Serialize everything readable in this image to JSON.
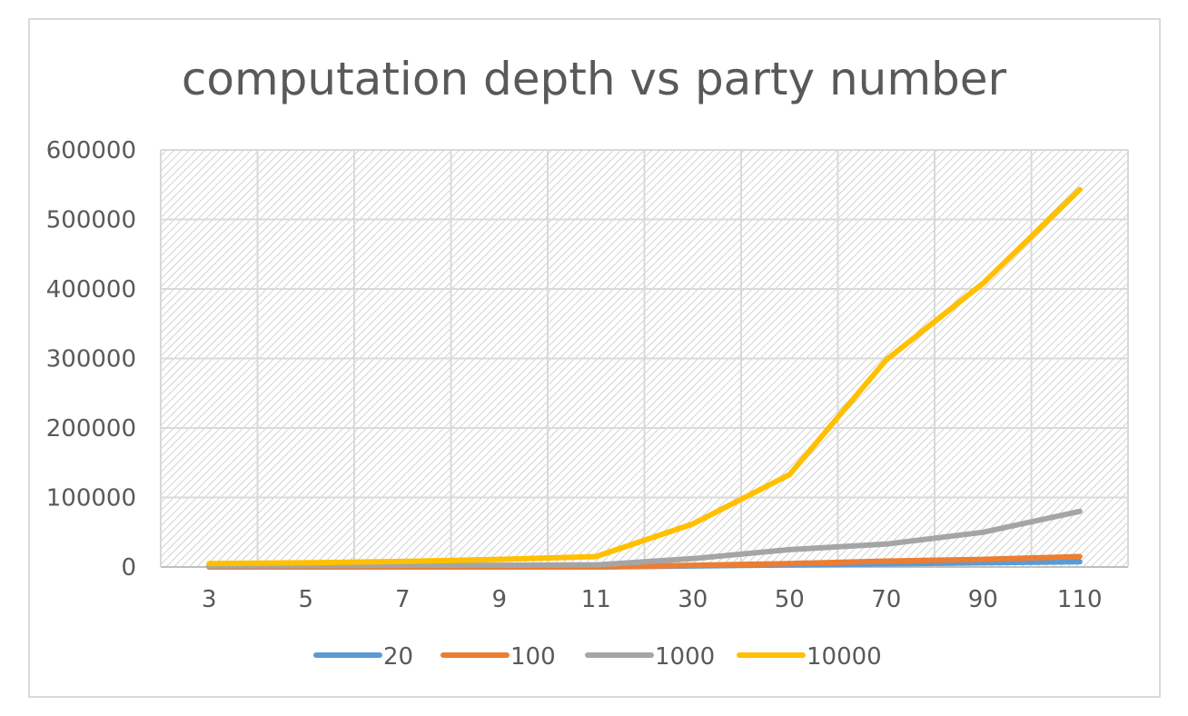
{
  "chart_data": {
    "type": "line",
    "title": "computation depth vs party number",
    "xlabel": "",
    "ylabel": "",
    "categories": [
      "3",
      "5",
      "7",
      "9",
      "11",
      "30",
      "50",
      "70",
      "90",
      "110"
    ],
    "ylim": [
      0,
      600000
    ],
    "yticks": [
      0,
      100000,
      200000,
      300000,
      400000,
      500000,
      600000
    ],
    "grid": true,
    "plot_background": "hatched",
    "legend_position": "bottom",
    "series": [
      {
        "name": "20",
        "color": "#5b9bd5",
        "values": [
          0,
          0,
          0,
          0,
          0,
          1500,
          3000,
          4500,
          6000,
          7500
        ]
      },
      {
        "name": "100",
        "color": "#ed7d31",
        "values": [
          0,
          0,
          0,
          0,
          0,
          2500,
          5000,
          8500,
          11000,
          15000
        ]
      },
      {
        "name": "1000",
        "color": "#a5a5a5",
        "values": [
          1500,
          2000,
          2500,
          2500,
          3000,
          12000,
          25000,
          33000,
          50000,
          80000
        ]
      },
      {
        "name": "10000",
        "color": "#ffc000",
        "values": [
          5000,
          6000,
          8000,
          11000,
          15000,
          62000,
          133000,
          298000,
          408000,
          543000
        ]
      }
    ]
  }
}
